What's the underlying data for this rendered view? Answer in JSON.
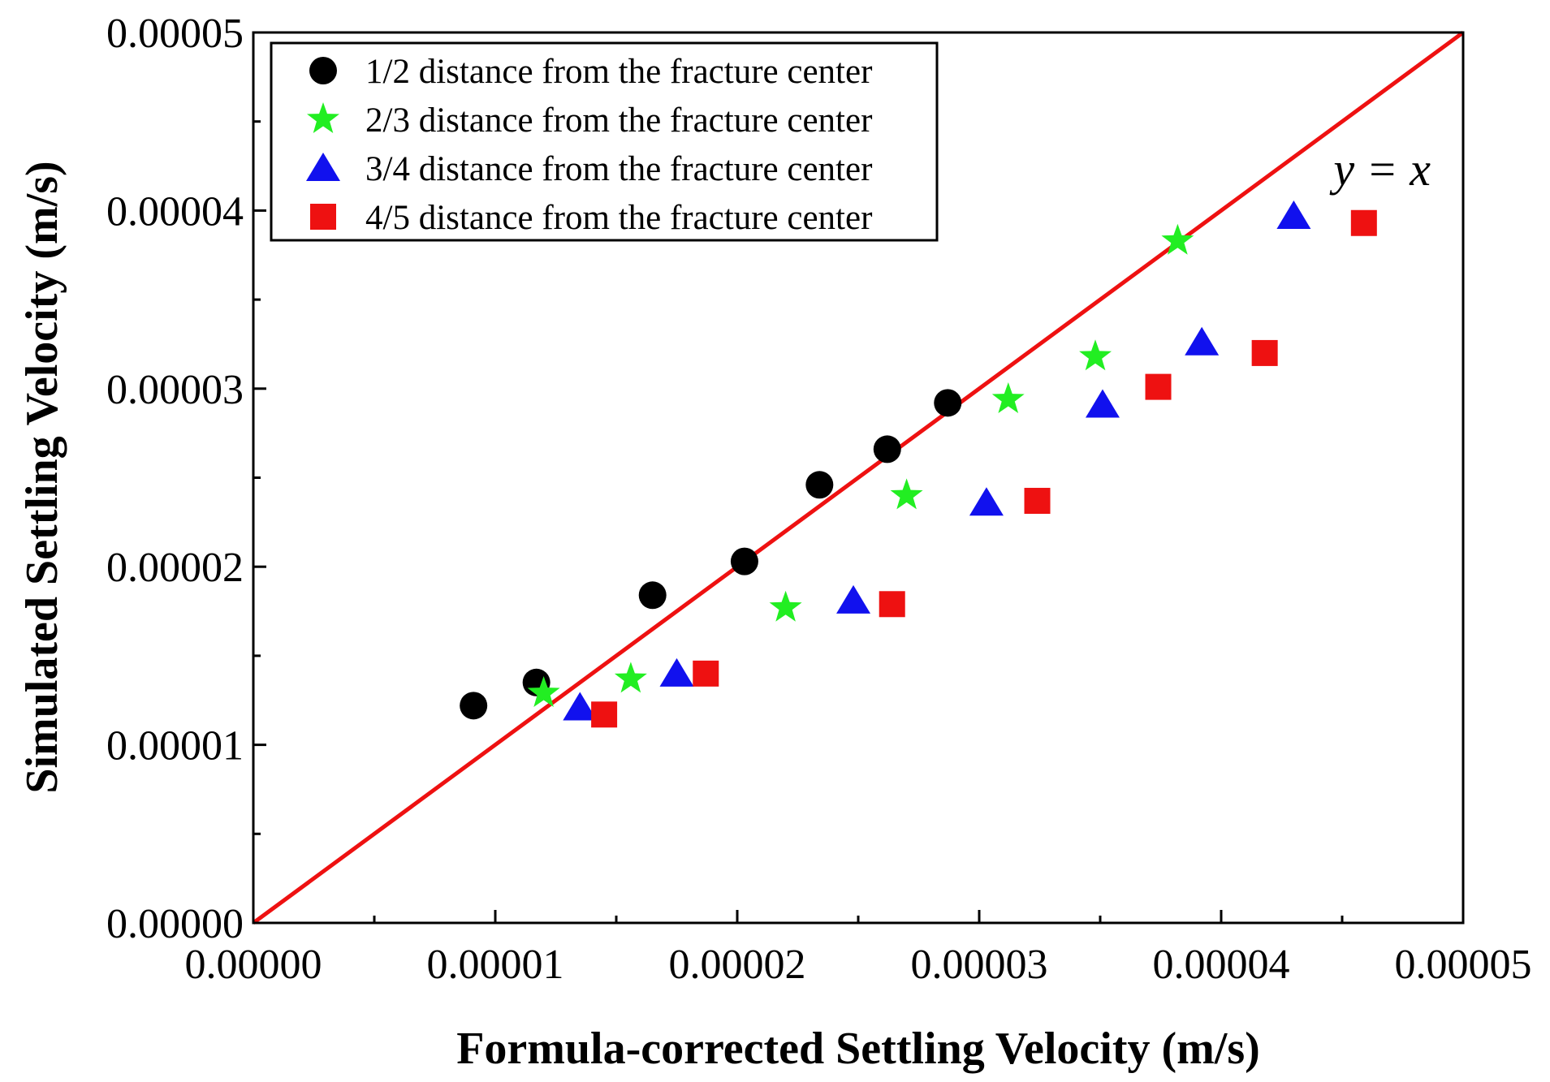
{
  "chart_data": {
    "type": "scatter",
    "title": "",
    "xlabel": "Formula-corrected Settling Velocity (m/s)",
    "ylabel": "Simulated Settling Velocity (m/s)",
    "xlim": [
      0,
      5e-05
    ],
    "ylim": [
      0,
      5e-05
    ],
    "x_ticks": [
      "0.00000",
      "0.00001",
      "0.00002",
      "0.00003",
      "0.00004",
      "0.00005"
    ],
    "y_ticks": [
      "0.00000",
      "0.00001",
      "0.00002",
      "0.00003",
      "0.00004",
      "0.00005"
    ],
    "grid": false,
    "legend_position": "top-left",
    "reference_line": {
      "label": "y = x",
      "from": [
        0,
        0
      ],
      "to": [
        5e-05,
        5e-05
      ],
      "color": "#ee1111"
    },
    "series": [
      {
        "name": "1/2 distance from the fracture center",
        "marker": "circle",
        "color": "#000000",
        "points": [
          [
            9.1e-06,
            1.22e-05
          ],
          [
            1.17e-05,
            1.35e-05
          ],
          [
            1.65e-05,
            1.84e-05
          ],
          [
            2.03e-05,
            2.03e-05
          ],
          [
            2.34e-05,
            2.46e-05
          ],
          [
            2.62e-05,
            2.66e-05
          ],
          [
            2.87e-05,
            2.92e-05
          ]
        ]
      },
      {
        "name": "2/3 distance from the fracture center",
        "marker": "star",
        "color": "#22ee22",
        "points": [
          [
            1.2e-05,
            1.29e-05
          ],
          [
            1.56e-05,
            1.37e-05
          ],
          [
            2.2e-05,
            1.77e-05
          ],
          [
            2.7e-05,
            2.4e-05
          ],
          [
            3.12e-05,
            2.94e-05
          ],
          [
            3.48e-05,
            3.18e-05
          ],
          [
            3.82e-05,
            3.83e-05
          ]
        ]
      },
      {
        "name": "3/4 distance from the fracture center",
        "marker": "triangle",
        "color": "#1111ee",
        "points": [
          [
            1.35e-05,
            1.21e-05
          ],
          [
            1.75e-05,
            1.4e-05
          ],
          [
            2.48e-05,
            1.81e-05
          ],
          [
            3.03e-05,
            2.36e-05
          ],
          [
            3.51e-05,
            2.91e-05
          ],
          [
            3.92e-05,
            3.26e-05
          ],
          [
            4.3e-05,
            3.97e-05
          ]
        ]
      },
      {
        "name": "4/5 distance from the fracture center",
        "marker": "square",
        "color": "#ee1111",
        "points": [
          [
            1.45e-05,
            1.17e-05
          ],
          [
            1.87e-05,
            1.4e-05
          ],
          [
            2.64e-05,
            1.79e-05
          ],
          [
            3.24e-05,
            2.37e-05
          ],
          [
            3.74e-05,
            3.01e-05
          ],
          [
            4.18e-05,
            3.2e-05
          ],
          [
            4.59e-05,
            3.93e-05
          ]
        ]
      }
    ]
  }
}
